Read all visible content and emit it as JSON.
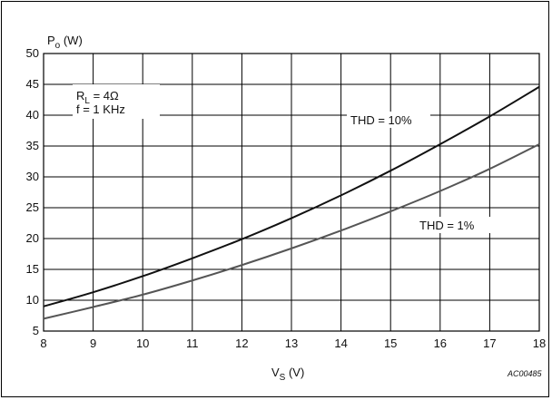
{
  "chart_data": {
    "type": "line",
    "ylabel_main": "P",
    "ylabel_sub": "o",
    "ylabel_unit": " (W)",
    "xlabel_main": "V",
    "xlabel_sub": "S",
    "xlabel_unit": " (V)",
    "xlim": [
      8,
      18
    ],
    "ylim": [
      5,
      50
    ],
    "xticks": [
      8,
      9,
      10,
      11,
      12,
      13,
      14,
      15,
      16,
      17,
      18
    ],
    "yticks": [
      5,
      10,
      15,
      20,
      25,
      30,
      35,
      40,
      45,
      50
    ],
    "grid": true,
    "series": [
      {
        "name": "THD = 10%",
        "color": "#111111",
        "x": [
          8,
          9,
          10,
          11,
          12,
          13,
          14,
          15,
          16,
          17,
          18
        ],
        "y": [
          9.0,
          11.3,
          13.9,
          16.8,
          19.9,
          23.3,
          27.0,
          31.0,
          35.3,
          39.8,
          44.6
        ]
      },
      {
        "name": "THD = 1%",
        "color": "#555555",
        "x": [
          8,
          9,
          10,
          11,
          12,
          13,
          14,
          15,
          16,
          17,
          18
        ],
        "y": [
          7.0,
          8.9,
          10.9,
          13.2,
          15.7,
          18.4,
          21.3,
          24.4,
          27.7,
          31.3,
          35.3
        ]
      }
    ],
    "annotations": {
      "rl_main": "R",
      "rl_sub": "L",
      "rl_value": " = 4Ω",
      "freq": "f = 1 KHz"
    },
    "figure_code": "AC00485"
  }
}
